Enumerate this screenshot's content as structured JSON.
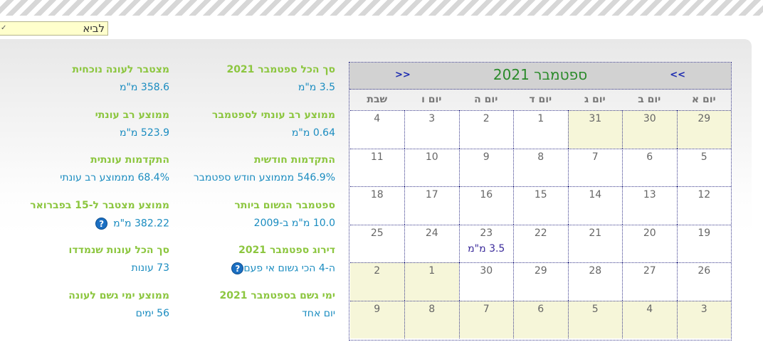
{
  "location_select": {
    "value": "לביא"
  },
  "stats_left": [
    {
      "label": "מצטבר לעונה נוכחית",
      "value": "358.6 מ\"מ"
    },
    {
      "label": "ממוצע רב עונתי",
      "value": "523.9 מ\"מ"
    },
    {
      "label": "התקדמות עונתית",
      "value": "68.4% מממוצע רב עונתי"
    },
    {
      "label": "ממוצע מצטבר ל-15 בפברואר",
      "value": "382.22 מ\"מ",
      "help": true
    },
    {
      "label": "סך הכל עונות שנמדדו",
      "value": "73 עונות"
    },
    {
      "label": "ממוצע ימי גשם לעונה",
      "value": "56 ימים"
    }
  ],
  "stats_right": [
    {
      "label": "סך הכל ספטמבר 2021",
      "value": "3.5 מ\"מ"
    },
    {
      "label": "ממוצע רב עונתי לספטמבר",
      "value": "0.64 מ\"מ"
    },
    {
      "label": "התקדמות חודשית",
      "value": "546.9% מממוצע חודש ספטמבר"
    },
    {
      "label": "ספטמבר הגשום ביותר",
      "value": "10.0 מ\"מ ב-2009"
    },
    {
      "label": "דירוג ספטמבר 2021",
      "value": "ה-4 הכי גשום אי פעם",
      "help": true
    },
    {
      "label": "ימי גשם בספטמבר 2021",
      "value": "יום אחד"
    }
  ],
  "calendar": {
    "title": "ספטמבר 2021",
    "next_label": ">>",
    "prev_label": "<<",
    "days_of_week": [
      "יום א",
      "יום ב",
      "יום ג",
      "יום ד",
      "יום ה",
      "יום ו",
      "שבת"
    ],
    "weeks": [
      [
        {
          "d": "29",
          "other": true
        },
        {
          "d": "30",
          "other": true
        },
        {
          "d": "31",
          "other": true
        },
        {
          "d": "1"
        },
        {
          "d": "2"
        },
        {
          "d": "3"
        },
        {
          "d": "4"
        }
      ],
      [
        {
          "d": "5"
        },
        {
          "d": "6"
        },
        {
          "d": "7"
        },
        {
          "d": "8"
        },
        {
          "d": "9"
        },
        {
          "d": "10"
        },
        {
          "d": "11"
        }
      ],
      [
        {
          "d": "12"
        },
        {
          "d": "13"
        },
        {
          "d": "14"
        },
        {
          "d": "15"
        },
        {
          "d": "16"
        },
        {
          "d": "17"
        },
        {
          "d": "18"
        }
      ],
      [
        {
          "d": "19"
        },
        {
          "d": "20"
        },
        {
          "d": "21"
        },
        {
          "d": "22"
        },
        {
          "d": "23",
          "rain": "3.5 מ\"מ"
        },
        {
          "d": "24"
        },
        {
          "d": "25"
        }
      ],
      [
        {
          "d": "26"
        },
        {
          "d": "27"
        },
        {
          "d": "28"
        },
        {
          "d": "29"
        },
        {
          "d": "30"
        },
        {
          "d": "1",
          "other": true
        },
        {
          "d": "2",
          "other": true
        }
      ],
      [
        {
          "d": "3",
          "other": true
        },
        {
          "d": "4",
          "other": true
        },
        {
          "d": "5",
          "other": true
        },
        {
          "d": "6",
          "other": true
        },
        {
          "d": "7",
          "other": true
        },
        {
          "d": "8",
          "other": true
        },
        {
          "d": "9",
          "other": true
        }
      ]
    ]
  },
  "colors": {
    "label": "#8cc63f",
    "value": "#1a8cc0",
    "title": "#2a8a2a",
    "other_month": "#f6f6d9"
  },
  "icons": {
    "help": "question-circle-icon",
    "dropdown": "chevron-down-icon"
  }
}
